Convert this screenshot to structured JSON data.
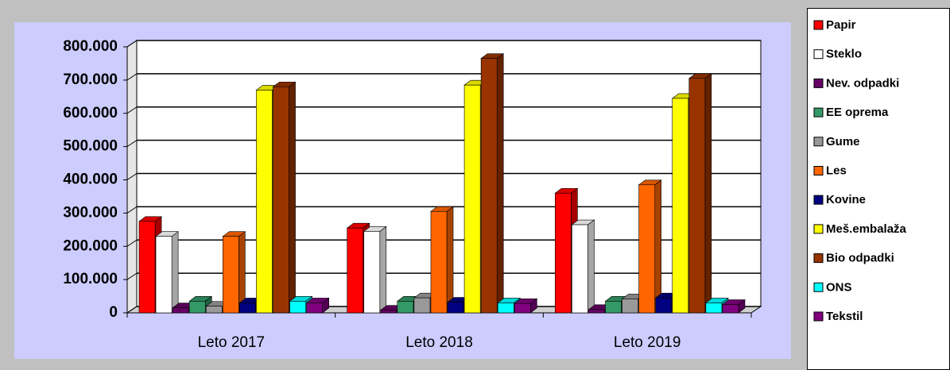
{
  "chart_data": {
    "type": "bar3d",
    "categories": [
      "Leto 2017",
      "Leto 2018",
      "Leto 2019"
    ],
    "series": [
      {
        "name": "Papir",
        "color": "#ff0000",
        "values": [
          275000,
          255000,
          360000
        ]
      },
      {
        "name": "Steklo",
        "color": "#ffffff",
        "values": [
          230000,
          245000,
          265000
        ]
      },
      {
        "name": "Nev. odpadki",
        "color": "#660066",
        "values": [
          15000,
          8000,
          10000
        ]
      },
      {
        "name": "EE oprema",
        "color": "#339966",
        "values": [
          35000,
          35000,
          35000
        ]
      },
      {
        "name": "Gume",
        "color": "#999999",
        "values": [
          20000,
          45000,
          42000
        ]
      },
      {
        "name": "Les",
        "color": "#ff6600",
        "values": [
          230000,
          305000,
          385000
        ]
      },
      {
        "name": "Kovine",
        "color": "#000080",
        "values": [
          30000,
          32000,
          45000
        ]
      },
      {
        "name": "Meš.embalaža",
        "color": "#ffff00",
        "values": [
          670000,
          685000,
          645000
        ]
      },
      {
        "name": "Bio odpadki",
        "color": "#993300",
        "values": [
          680000,
          765000,
          705000
        ]
      },
      {
        "name": "ONS",
        "color": "#00ffff",
        "values": [
          35000,
          30000,
          30000
        ]
      },
      {
        "name": "Tekstil",
        "color": "#800080",
        "values": [
          30000,
          28000,
          25000
        ]
      }
    ],
    "ylim": [
      0,
      800000
    ],
    "yticks": [
      0,
      {
        "value": 100000,
        "label": "100.000"
      },
      {
        "value": 200000,
        "label": "200.000"
      },
      {
        "value": 300000,
        "label": "300.000"
      },
      {
        "value": 400000,
        "label": "400.000"
      },
      {
        "value": 500000,
        "label": "500.000"
      },
      {
        "value": 600000,
        "label": "600.000"
      },
      {
        "value": 700000,
        "label": "700.000"
      },
      {
        "value": 800000,
        "label": "800.000"
      }
    ],
    "grid": true
  }
}
